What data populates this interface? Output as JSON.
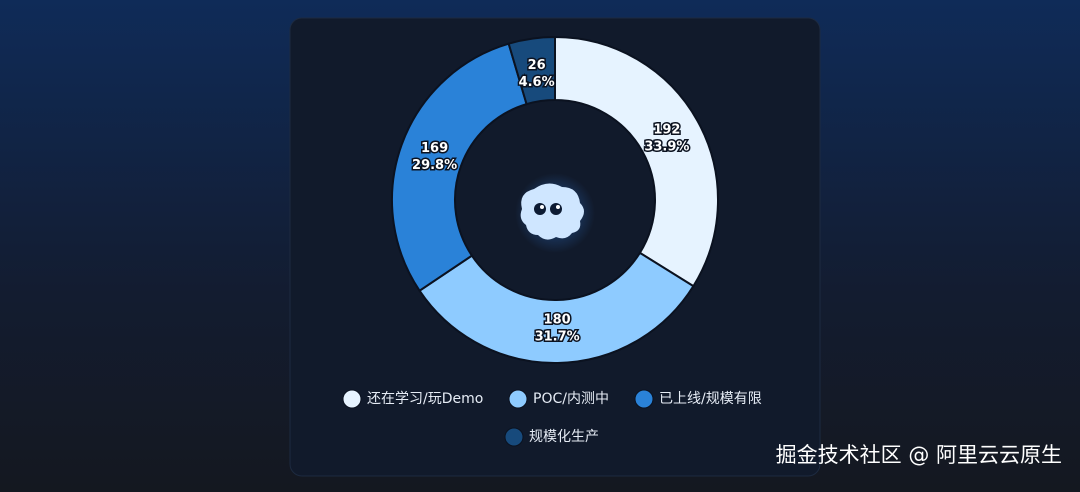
{
  "chart_data": {
    "type": "donut",
    "categories": [
      "还在学习/玩Demo",
      "POC/内测中",
      "已上线/规模有限",
      "规模化生产"
    ],
    "values": [
      192,
      180,
      169,
      26
    ],
    "percents": [
      33.9,
      31.7,
      29.8,
      4.6
    ],
    "percent_labels": [
      "33.9%",
      "31.7%",
      "29.8%",
      "4.6%"
    ],
    "colors": [
      "#e6f3ff",
      "#8ecbff",
      "#2a82d8",
      "#174a7c"
    ]
  },
  "watermark": "掘金技术社区 @ 阿里云云原生"
}
